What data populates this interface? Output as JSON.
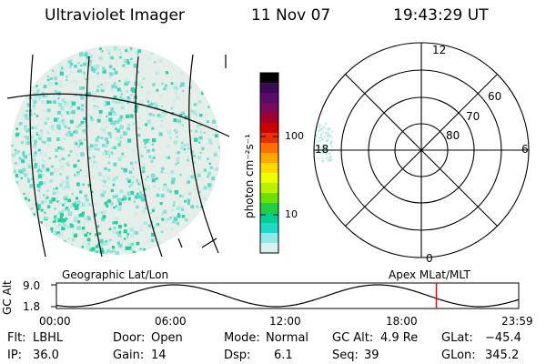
{
  "header": {
    "title": "Ultraviolet Imager",
    "date": "11 Nov 07",
    "time": "19:43:29 UT"
  },
  "colorbar": {
    "unit_label": "photon cm⁻²s⁻¹",
    "ticks": [
      "100",
      "10"
    ],
    "colors": [
      "#000000",
      "#3a0a52",
      "#5a0a6a",
      "#7a0a5a",
      "#a00030",
      "#cc0000",
      "#e83000",
      "#ff7000",
      "#ffa800",
      "#ffd800",
      "#f0ff00",
      "#b8f000",
      "#70e000",
      "#20d040",
      "#00d090",
      "#20d8c8",
      "#90e8e8",
      "#d8f0f0"
    ]
  },
  "polar": {
    "lat_labels": [
      "60",
      "70",
      "80"
    ],
    "mlt_labels": {
      "top": "12",
      "left": "18",
      "right": "6",
      "bottom": "0"
    }
  },
  "panels": {
    "left_caption": "Geographic Lat/Lon",
    "right_caption": "Apex MLat/MLT"
  },
  "alt_plot": {
    "ylabel": "GC Alt",
    "ymax": "9.0",
    "ymin": "1.8",
    "x_ticks": [
      "00:00",
      "06:00",
      "12:00",
      "18:00",
      "23:59"
    ],
    "current_time_fraction": 0.822,
    "marker_color": "#ff0000"
  },
  "info": {
    "flt_label": "Flt:",
    "flt_value": "LBHL",
    "ip_label": "IP:",
    "ip_value": "36.0",
    "door_label": "Door:",
    "door_value": "Open",
    "gain_label": "Gain:",
    "gain_value": "14",
    "mode_label": "Mode:",
    "mode_value": "Normal",
    "dsp_label": "Dsp:",
    "dsp_value": "6.1",
    "gcalt_label": "GC Alt:",
    "gcalt_value": "4.9 Re",
    "seq_label": "Seq:",
    "seq_value": "39",
    "glat_label": "GLat:",
    "glat_value": "−45.4",
    "glon_label": "GLon:",
    "glon_value": "345.2"
  }
}
